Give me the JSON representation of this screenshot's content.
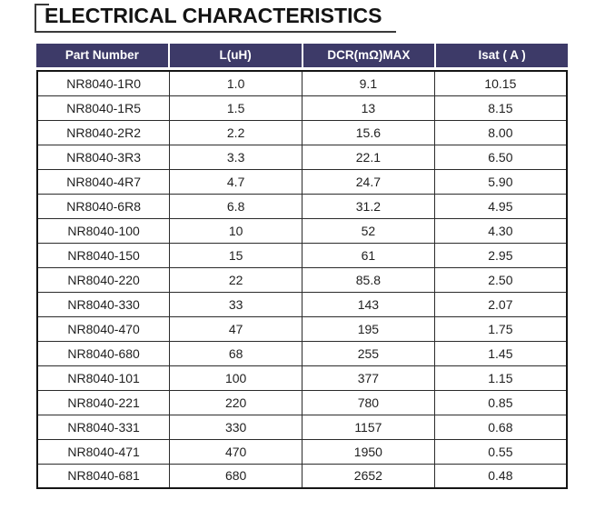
{
  "page": {
    "title": "ELECTRICAL CHARACTERISTICS"
  },
  "colors": {
    "header_bg": "#3d3a68",
    "header_text": "#ffffff",
    "body_border": "#2b2b2b",
    "title_text": "#141414"
  },
  "table": {
    "columns": [
      "Part Number",
      "L(uH)",
      "DCR(mΩ)MAX",
      "Isat ( A )"
    ],
    "rows": [
      [
        "NR8040-1R0",
        "1.0",
        "9.1",
        "10.15"
      ],
      [
        "NR8040-1R5",
        "1.5",
        "13",
        "8.15"
      ],
      [
        "NR8040-2R2",
        "2.2",
        "15.6",
        "8.00"
      ],
      [
        "NR8040-3R3",
        "3.3",
        "22.1",
        "6.50"
      ],
      [
        "NR8040-4R7",
        "4.7",
        "24.7",
        "5.90"
      ],
      [
        "NR8040-6R8",
        "6.8",
        "31.2",
        "4.95"
      ],
      [
        "NR8040-100",
        "10",
        "52",
        "4.30"
      ],
      [
        "NR8040-150",
        "15",
        "61",
        "2.95"
      ],
      [
        "NR8040-220",
        "22",
        "85.8",
        "2.50"
      ],
      [
        "NR8040-330",
        "33",
        "143",
        "2.07"
      ],
      [
        "NR8040-470",
        "47",
        "195",
        "1.75"
      ],
      [
        "NR8040-680",
        "68",
        "255",
        "1.45"
      ],
      [
        "NR8040-101",
        "100",
        "377",
        "1.15"
      ],
      [
        "NR8040-221",
        "220",
        "780",
        "0.85"
      ],
      [
        "NR8040-331",
        "330",
        "1157",
        "0.68"
      ],
      [
        "NR8040-471",
        "470",
        "1950",
        "0.55"
      ],
      [
        "NR8040-681",
        "680",
        "2652",
        "0.48"
      ]
    ]
  }
}
